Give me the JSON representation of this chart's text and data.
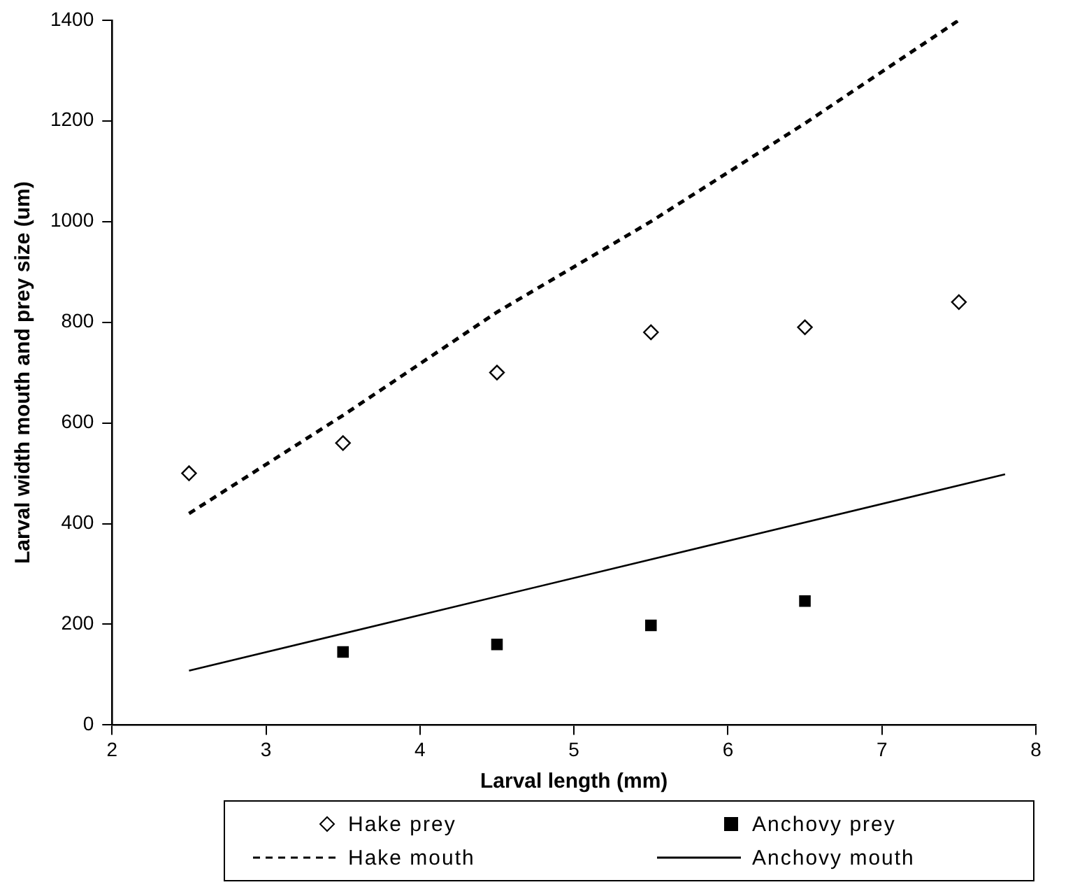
{
  "chart_data": {
    "type": "scatter",
    "xlabel": "Larval length (mm)",
    "ylabel": "Larval width mouth and prey size (um)",
    "xlim": [
      2,
      8
    ],
    "xticks": [
      2,
      3,
      4,
      5,
      6,
      7,
      8
    ],
    "ylim": [
      0,
      1400
    ],
    "yticks": [
      0,
      200,
      400,
      600,
      800,
      1000,
      1200,
      1400
    ],
    "grid": false,
    "legend": "bottom",
    "series": [
      {
        "name": "Hake prey",
        "marker": "diamond",
        "color": "#000000",
        "x": [
          2.5,
          3.5,
          4.5,
          5.5,
          6.5,
          7.5
        ],
        "values": [
          500,
          560,
          700,
          780,
          790,
          840
        ]
      },
      {
        "name": "Anchovy prey",
        "marker": "square",
        "color": "#000000",
        "x": [
          3.5,
          4.5,
          5.5,
          6.5
        ],
        "values": [
          145,
          160,
          198,
          246
        ]
      },
      {
        "name": "Hake mouth",
        "type": "line",
        "line_style": "dashed",
        "marker": "none",
        "color": "#000000",
        "x": [
          2.5,
          3.5,
          4.5,
          5.5,
          6.5,
          7.5
        ],
        "values": [
          420,
          615,
          820,
          1000,
          1195,
          1400
        ]
      },
      {
        "name": "Anchovy mouth",
        "type": "line",
        "line_style": "solid",
        "marker": "none",
        "color": "#000000",
        "x": [
          2.5,
          7.8
        ],
        "values": [
          108,
          498
        ]
      }
    ]
  }
}
